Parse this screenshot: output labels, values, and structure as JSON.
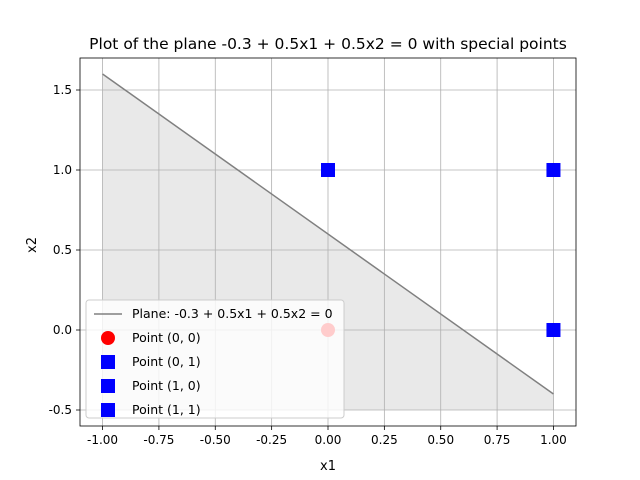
{
  "chart_data": {
    "type": "scatter",
    "title": "Plot of the plane -0.3 + 0.5x1 + 0.5x2 = 0 with special points",
    "xlabel": "x1",
    "ylabel": "x2",
    "xlim": [
      -1.1,
      1.1
    ],
    "ylim": [
      -0.6,
      1.7
    ],
    "xticks": [
      -1.0,
      -0.75,
      -0.5,
      -0.25,
      0.0,
      0.25,
      0.5,
      0.75,
      1.0
    ],
    "xtick_labels": [
      "-1.00",
      "-0.75",
      "-0.50",
      "-0.25",
      "0.00",
      "0.25",
      "0.50",
      "0.75",
      "1.00"
    ],
    "yticks": [
      -0.5,
      0.0,
      0.5,
      1.0,
      1.5
    ],
    "ytick_labels": [
      "-0.5",
      "0.0",
      "0.5",
      "1.0",
      "1.5"
    ],
    "grid": true,
    "legend_position": "lower-left",
    "line": {
      "name": "Plane: -0.3 + 0.5x1 + 0.5x2 = 0",
      "x": [
        -1.0,
        1.0
      ],
      "y": [
        1.6,
        -0.4
      ],
      "color": "#808080"
    },
    "fill": {
      "x": [
        -1.0,
        1.0
      ],
      "y_upper": [
        1.6,
        -0.4
      ],
      "y_lower": -0.5,
      "color": "#d3d3d3",
      "alpha": 0.5
    },
    "points": [
      {
        "name": "Point (0, 0)",
        "x": 0,
        "y": 0,
        "marker": "circle",
        "color": "#ff0000"
      },
      {
        "name": "Point (0, 1)",
        "x": 0,
        "y": 1,
        "marker": "square",
        "color": "#0000ff"
      },
      {
        "name": "Point (1, 0)",
        "x": 1,
        "y": 0,
        "marker": "square",
        "color": "#0000ff"
      },
      {
        "name": "Point (1, 1)",
        "x": 1,
        "y": 1,
        "marker": "square",
        "color": "#0000ff"
      }
    ]
  }
}
